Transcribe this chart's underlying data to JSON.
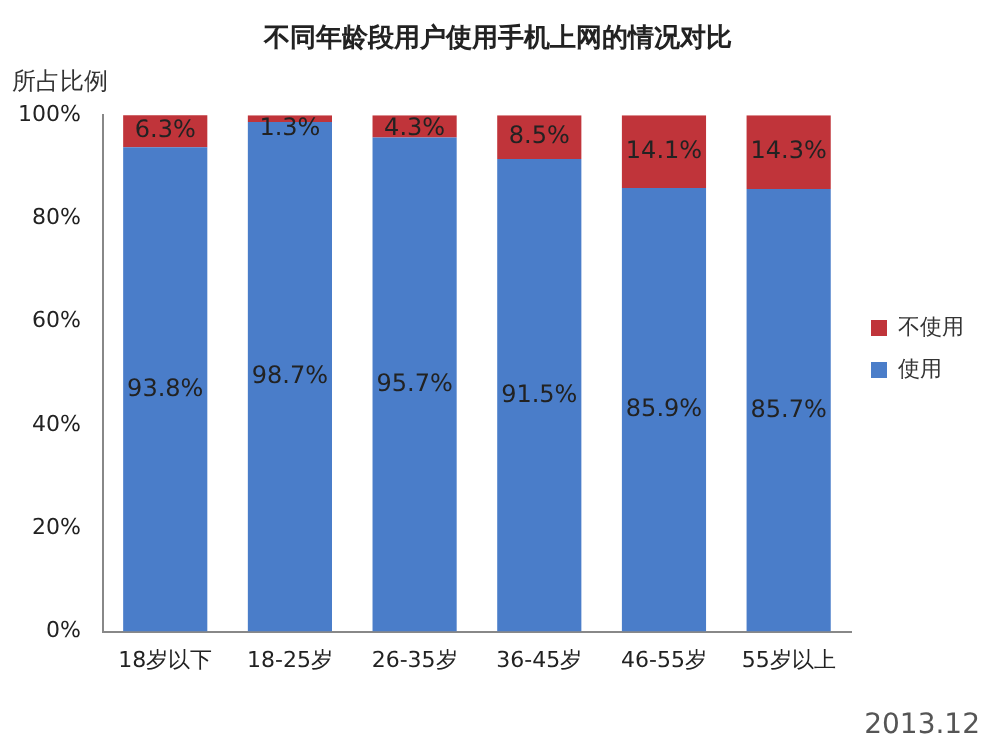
{
  "chart_data": {
    "type": "bar",
    "stacked": true,
    "title": "不同年龄段用户使用手机上网的情况对比",
    "ylabel": "所占比例",
    "categories": [
      "18岁以下",
      "18-25岁",
      "26-35岁",
      "36-45岁",
      "46-55岁",
      "55岁以上"
    ],
    "series": [
      {
        "name": "使用",
        "color": "#4a7dc9",
        "values": [
          93.8,
          98.7,
          95.7,
          91.5,
          85.9,
          85.7
        ],
        "value_labels": [
          "93.8%",
          "98.7%",
          "95.7%",
          "91.5%",
          "85.9%",
          "85.7%"
        ]
      },
      {
        "name": "不使用",
        "color": "#c0343a",
        "values": [
          6.3,
          1.3,
          4.3,
          8.5,
          14.1,
          14.3
        ],
        "value_labels": [
          "6.3%",
          "1.3%",
          "4.3%",
          "8.5%",
          "14.1%",
          "14.3%"
        ]
      }
    ],
    "ylim": [
      0,
      100
    ],
    "yticks": [
      {
        "value": 0,
        "label": "0%"
      },
      {
        "value": 20,
        "label": "20%"
      },
      {
        "value": 40,
        "label": "40%"
      },
      {
        "value": 60,
        "label": "60%"
      },
      {
        "value": 80,
        "label": "80%"
      },
      {
        "value": 100,
        "label": "100%"
      }
    ],
    "grid": false,
    "legend": "right",
    "annotations": [
      "2013.12"
    ]
  }
}
